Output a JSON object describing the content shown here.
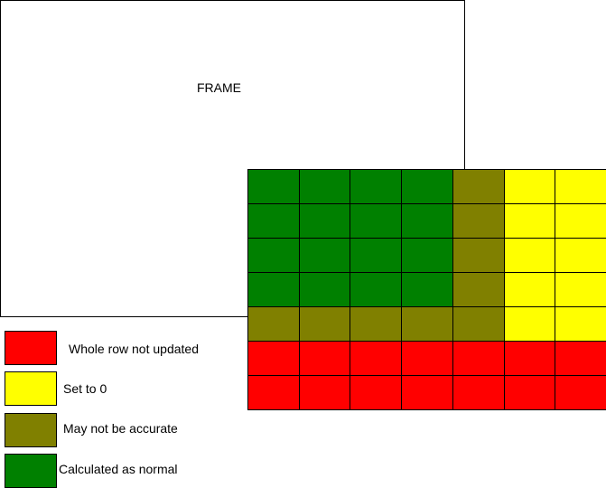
{
  "frame": {
    "label": "FRAME"
  },
  "colors": {
    "red": "#ff0000",
    "yellow": "#ffff00",
    "olive": "#808000",
    "green": "#008000"
  },
  "grid": {
    "rows": [
      [
        "green",
        "green",
        "green",
        "green",
        "olive",
        "yellow",
        "yellow"
      ],
      [
        "green",
        "green",
        "green",
        "green",
        "olive",
        "yellow",
        "yellow"
      ],
      [
        "green",
        "green",
        "green",
        "green",
        "olive",
        "yellow",
        "yellow"
      ],
      [
        "green",
        "green",
        "green",
        "green",
        "olive",
        "yellow",
        "yellow"
      ],
      [
        "olive",
        "olive",
        "olive",
        "olive",
        "olive",
        "yellow",
        "yellow"
      ],
      [
        "red",
        "red",
        "red",
        "red",
        "red",
        "red",
        "red"
      ],
      [
        "red",
        "red",
        "red",
        "red",
        "red",
        "red",
        "red"
      ]
    ]
  },
  "legend": {
    "items": [
      {
        "color": "red",
        "label": "Whole row not updated"
      },
      {
        "color": "yellow",
        "label": "Set to 0"
      },
      {
        "color": "olive",
        "label": "May not be accurate"
      },
      {
        "color": "green",
        "label": "Calculated as normal"
      }
    ]
  }
}
